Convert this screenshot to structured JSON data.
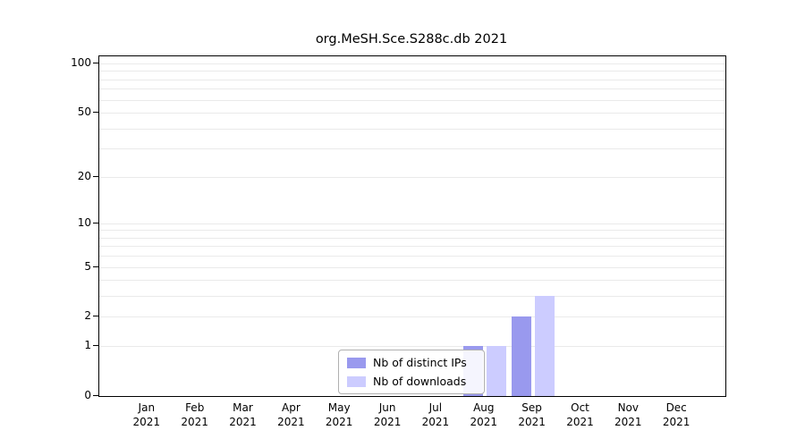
{
  "chart_data": {
    "type": "bar",
    "title": "org.MeSH.Sce.S288c.db 2021",
    "categories": [
      "Jan 2021",
      "Feb 2021",
      "Mar 2021",
      "Apr 2021",
      "May 2021",
      "Jun 2021",
      "Jul 2021",
      "Aug 2021",
      "Sep 2021",
      "Oct 2021",
      "Nov 2021",
      "Dec 2021"
    ],
    "series": [
      {
        "name": "Nb of distinct IPs",
        "color": "#9999ee",
        "values": [
          0,
          0,
          0,
          0,
          0,
          0,
          0,
          1,
          2,
          0,
          0,
          0
        ]
      },
      {
        "name": "Nb of downloads",
        "color": "#ccccff",
        "values": [
          0,
          0,
          0,
          0,
          0,
          0,
          0,
          1,
          3,
          0,
          0,
          0
        ]
      }
    ],
    "y_ticks": [
      0,
      1,
      2,
      5,
      10,
      20,
      50,
      100
    ],
    "y_scale": "log1p",
    "ylim": [
      0,
      110
    ],
    "grid": true,
    "legend_position": "bottom-center",
    "colors": {
      "axis": "#000000",
      "gridline": "#eaeaea",
      "background": "#ffffff"
    }
  }
}
